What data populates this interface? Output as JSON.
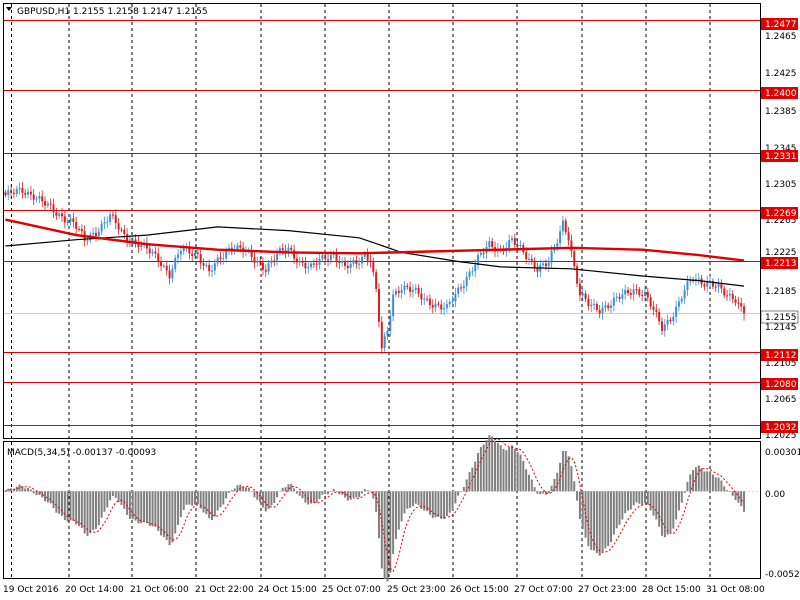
{
  "header": {
    "title": "GBPUSD,H1  1.2155 1.2158 1.2147 1.2155",
    "macd_title": "MACD(5,34,5) -0.00137 -0.00093",
    "menu_icon": "triangle-down-icon"
  },
  "colors": {
    "background": "#ffffff",
    "grid": "#000000",
    "bull": "#3a8fd8",
    "bear": "#d62020",
    "level_line": "#e00000",
    "level_label_bg": "#e00000",
    "ma_red": "#e00000",
    "ma_black": "#000000",
    "macd_hist": "#808080",
    "macd_signal": "#e00000"
  },
  "price_axis": {
    "labels": [
      "1.2465",
      "1.2425",
      "1.2385",
      "1.2345",
      "1.2305",
      "1.2265",
      "1.2225",
      "1.2185",
      "1.2145",
      "1.2105",
      "1.2065",
      "1.2025"
    ],
    "current": "1.2155"
  },
  "macd_axis": {
    "labels": [
      "0.00301",
      "0.00",
      "-0.00522"
    ]
  },
  "time_axis": {
    "labels": [
      "19 Oct 2016",
      "20 Oct 14:00",
      "21 Oct 06:00",
      "21 Oct 22:00",
      "24 Oct 15:00",
      "25 Oct 07:00",
      "25 Oct 23:00",
      "26 Oct 15:00",
      "27 Oct 07:00",
      "27 Oct 23:00",
      "28 Oct 15:00",
      "31 Oct 08:00"
    ]
  },
  "levels": [
    "1.2477",
    "1.2400",
    "1.2331",
    "1.2269",
    "1.2213",
    "1.2112",
    "1.2080",
    "1.2032"
  ],
  "chart_data": {
    "type": "candlestick",
    "symbol": "GBPUSD",
    "timeframe": "H1",
    "ylim": [
      1.2018,
      1.2495
    ],
    "last": {
      "open": 1.2155,
      "high": 1.2158,
      "low": 1.2147,
      "close": 1.2155
    },
    "levels": [
      1.2477,
      1.24,
      1.2331,
      1.2269,
      1.2213,
      1.2112,
      1.208,
      1.2032
    ],
    "close_path": [
      [
        0,
        1.2285
      ],
      [
        6,
        1.229
      ],
      [
        10,
        1.2285
      ],
      [
        14,
        1.2275
      ],
      [
        18,
        1.2265
      ],
      [
        24,
        1.2255
      ],
      [
        28,
        1.2235
      ],
      [
        32,
        1.2245
      ],
      [
        37,
        1.2262
      ],
      [
        42,
        1.224
      ],
      [
        48,
        1.223
      ],
      [
        54,
        1.2215
      ],
      [
        58,
        1.2198
      ],
      [
        62,
        1.2225
      ],
      [
        68,
        1.222
      ],
      [
        72,
        1.22
      ],
      [
        76,
        1.2215
      ],
      [
        80,
        1.223
      ],
      [
        84,
        1.2225
      ],
      [
        88,
        1.2213
      ],
      [
        92,
        1.2205
      ],
      [
        96,
        1.222
      ],
      [
        100,
        1.2225
      ],
      [
        104,
        1.2212
      ],
      [
        108,
        1.2205
      ],
      [
        112,
        1.2215
      ],
      [
        116,
        1.222
      ],
      [
        120,
        1.2205
      ],
      [
        124,
        1.221
      ],
      [
        127,
        1.222
      ],
      [
        129,
        1.2215
      ],
      [
        131,
        1.218
      ],
      [
        133,
        1.2115
      ],
      [
        135,
        1.2135
      ],
      [
        137,
        1.2175
      ],
      [
        140,
        1.2185
      ],
      [
        144,
        1.218
      ],
      [
        148,
        1.217
      ],
      [
        152,
        1.2165
      ],
      [
        156,
        1.216
      ],
      [
        159,
        1.2175
      ],
      [
        163,
        1.2195
      ],
      [
        167,
        1.2215
      ],
      [
        171,
        1.223
      ],
      [
        175,
        1.2225
      ],
      [
        179,
        1.2235
      ],
      [
        182,
        1.2225
      ],
      [
        185,
        1.2215
      ],
      [
        188,
        1.2205
      ],
      [
        192,
        1.221
      ],
      [
        195,
        1.2235
      ],
      [
        197,
        1.2255
      ],
      [
        199,
        1.224
      ],
      [
        201,
        1.2205
      ],
      [
        203,
        1.2175
      ],
      [
        206,
        1.2165
      ],
      [
        210,
        1.216
      ],
      [
        214,
        1.2165
      ],
      [
        218,
        1.2175
      ],
      [
        222,
        1.2182
      ],
      [
        226,
        1.2175
      ],
      [
        229,
        1.2158
      ],
      [
        232,
        1.214
      ],
      [
        235,
        1.215
      ],
      [
        238,
        1.2165
      ],
      [
        240,
        1.218
      ],
      [
        243,
        1.2195
      ],
      [
        246,
        1.219
      ],
      [
        249,
        1.2188
      ],
      [
        252,
        1.2182
      ],
      [
        255,
        1.2175
      ],
      [
        258,
        1.2172
      ],
      [
        261,
        1.2155
      ]
    ],
    "ma_red": [
      [
        0,
        1.2258
      ],
      [
        25,
        1.2241
      ],
      [
        50,
        1.2231
      ],
      [
        75,
        1.2225
      ],
      [
        100,
        1.2222
      ],
      [
        125,
        1.2221
      ],
      [
        150,
        1.2223
      ],
      [
        175,
        1.2225
      ],
      [
        200,
        1.2227
      ],
      [
        225,
        1.2225
      ],
      [
        245,
        1.2219
      ],
      [
        261,
        1.2213
      ]
    ],
    "ma_black": [
      [
        0,
        1.2229
      ],
      [
        25,
        1.2236
      ],
      [
        50,
        1.2241
      ],
      [
        75,
        1.225
      ],
      [
        100,
        1.2246
      ],
      [
        125,
        1.2238
      ],
      [
        140,
        1.2222
      ],
      [
        160,
        1.2212
      ],
      [
        175,
        1.2206
      ],
      [
        200,
        1.2204
      ],
      [
        225,
        1.2196
      ],
      [
        245,
        1.2191
      ],
      [
        261,
        1.2185
      ]
    ],
    "macd_ylim": [
      -0.0058,
      0.0033
    ],
    "macd_last": {
      "main": -0.00137,
      "signal": -0.00093
    }
  }
}
